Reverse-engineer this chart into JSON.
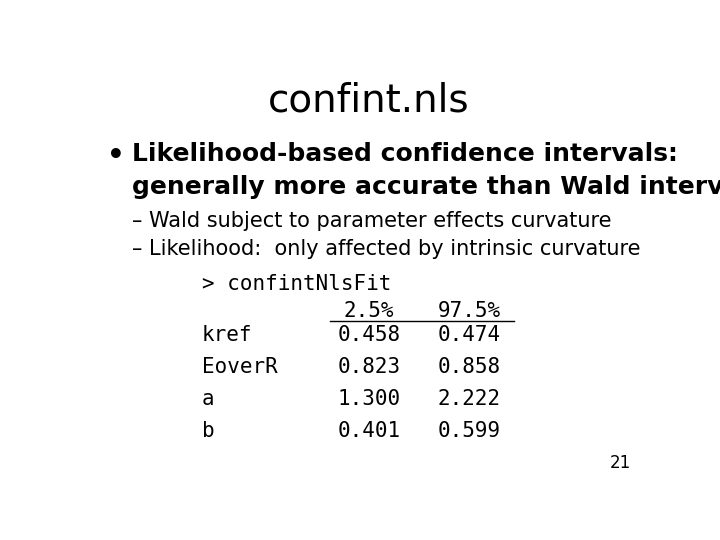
{
  "title": "confint.nls",
  "title_fontsize": 28,
  "title_fontweight": "normal",
  "background_color": "#ffffff",
  "bullet_text_line1": "Likelihood-based confidence intervals:",
  "bullet_text_line2": "generally more accurate than Wald intervals",
  "sub_bullet1": "– Wald subject to parameter effects curvature",
  "sub_bullet2": "– Likelihood:  only affected by intrinsic curvature",
  "code_header": "> confintNlsFit",
  "col_headers": [
    "2.5%",
    "97.5%"
  ],
  "row_labels": [
    "kref",
    "EoverR",
    "a",
    "b"
  ],
  "col1_values": [
    "0.458",
    "0.823",
    "1.300",
    "0.401"
  ],
  "col2_values": [
    "0.474",
    "0.858",
    "2.222",
    "0.599"
  ],
  "page_number": "21",
  "bullet_fontsize": 18,
  "bullet_fontweight": "bold",
  "sub_bullet_fontsize": 15,
  "code_fontsize": 15,
  "table_fontsize": 15
}
